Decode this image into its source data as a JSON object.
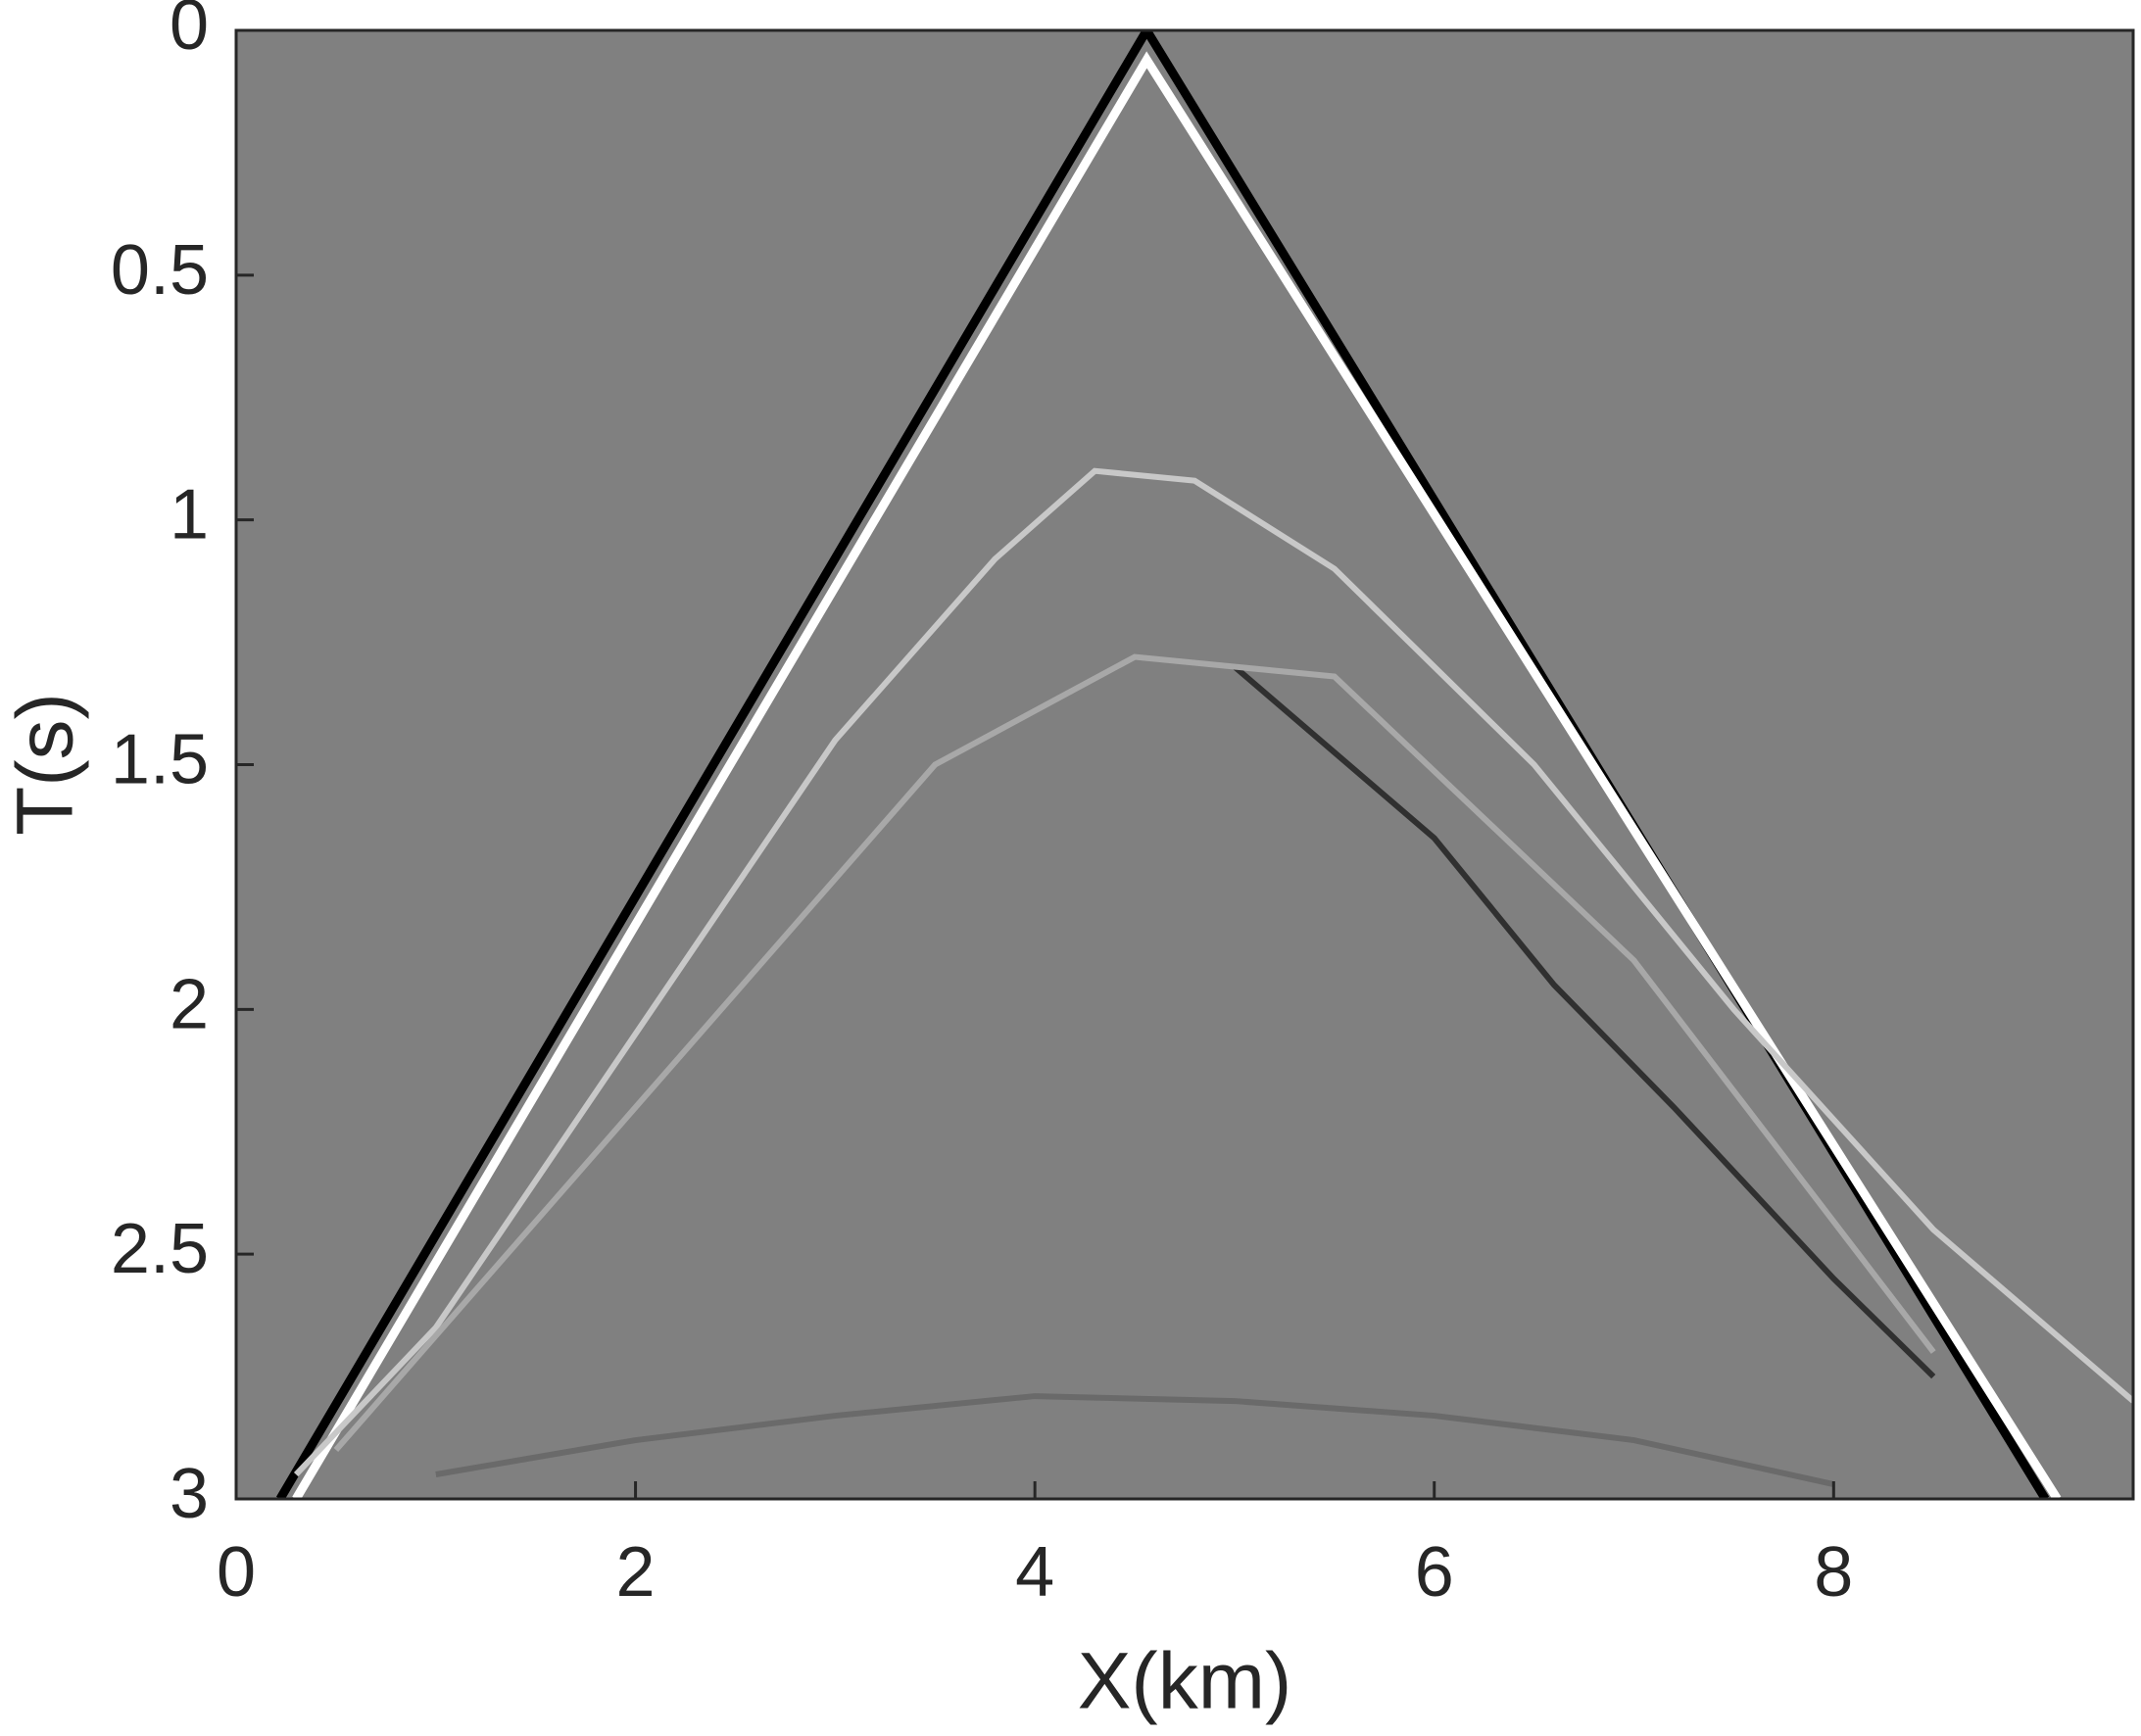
{
  "chart_data": {
    "type": "line",
    "xlabel": "X(km)",
    "ylabel": "T(s)",
    "xlim": [
      0,
      9.5
    ],
    "xticks": [
      0,
      2,
      4,
      6,
      8
    ],
    "ylim": [
      0,
      3
    ],
    "yticks": [
      0,
      0.5,
      1,
      1.5,
      2,
      2.5,
      3
    ],
    "y_reversed": true,
    "plot_background": "#808080",
    "series": [
      {
        "color": "#000000",
        "x": [
          0.22,
          4.56,
          9.06
        ],
        "values": [
          3,
          0,
          3
        ]
      },
      {
        "color": "#ffffff",
        "x": [
          0.3,
          4.56,
          9.12
        ],
        "values": [
          3,
          0.06,
          3
        ]
      },
      {
        "color": "#c8c8c8",
        "x": [
          0.3,
          1,
          2,
          3,
          3.8,
          4.3,
          4.8,
          5.5,
          6.5,
          7.5,
          8.5,
          9.5
        ],
        "values": [
          2.95,
          2.65,
          2.05,
          1.45,
          1.08,
          0.9,
          0.92,
          1.1,
          1.5,
          2.0,
          2.45,
          2.8
        ]
      },
      {
        "color": "#303030",
        "x": [
          5,
          6,
          6.6,
          7.2,
          8,
          8.5
        ],
        "values": [
          1.3,
          1.65,
          1.95,
          2.2,
          2.55,
          2.75
        ]
      },
      {
        "color": "#a8a8a8",
        "x": [
          0.5,
          2,
          3.5,
          4.5,
          5.5,
          7,
          8.5
        ],
        "values": [
          2.9,
          2.2,
          1.5,
          1.28,
          1.32,
          1.9,
          2.7
        ]
      },
      {
        "color": "#6a6a6a",
        "x": [
          1,
          2,
          3,
          4,
          5,
          6,
          7,
          8
        ],
        "values": [
          2.95,
          2.88,
          2.83,
          2.79,
          2.8,
          2.83,
          2.88,
          2.97
        ]
      }
    ]
  }
}
